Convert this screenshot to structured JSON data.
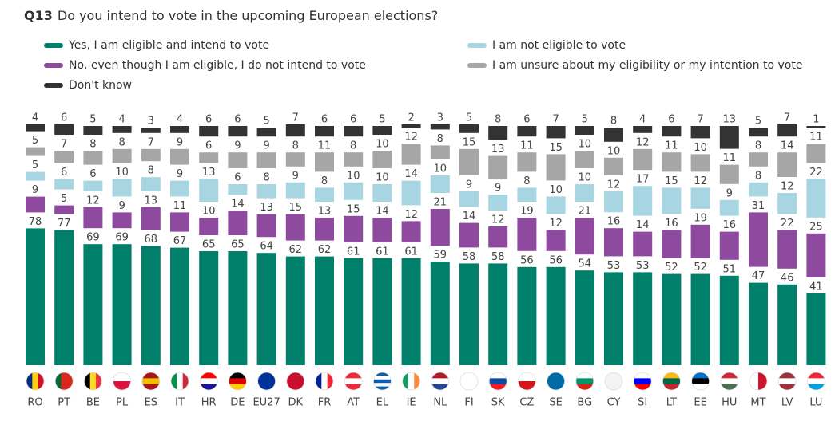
{
  "chart_data": {
    "type": "stacked-bar",
    "title_code": "Q13",
    "title": "Do you intend to vote in the upcoming European elections?",
    "categories": [
      "RO",
      "PT",
      "BE",
      "PL",
      "ES",
      "IT",
      "HR",
      "DE",
      "EU27",
      "DK",
      "FR",
      "AT",
      "EL",
      "IE",
      "NL",
      "FI",
      "SK",
      "CZ",
      "SE",
      "BG",
      "CY",
      "SI",
      "LT",
      "EE",
      "HU",
      "MT",
      "LV",
      "LU"
    ],
    "series": [
      {
        "name": "Yes, I am eligible and intend to vote",
        "color": "#00806a",
        "values": [
          78,
          77,
          69,
          69,
          68,
          67,
          65,
          65,
          64,
          62,
          62,
          61,
          61,
          61,
          59,
          58,
          58,
          56,
          56,
          54,
          53,
          53,
          52,
          52,
          51,
          47,
          46,
          41
        ]
      },
      {
        "name": "No, even though I am eligible, I do not intend to vote",
        "color": "#8e4a9e",
        "values": [
          9,
          5,
          12,
          9,
          13,
          11,
          10,
          14,
          13,
          15,
          13,
          15,
          14,
          12,
          21,
          14,
          12,
          19,
          12,
          21,
          16,
          14,
          16,
          19,
          16,
          31,
          22,
          25
        ]
      },
      {
        "name": "I am not eligible to vote",
        "color": "#a8d5e2",
        "values": [
          5,
          6,
          6,
          10,
          8,
          9,
          13,
          6,
          8,
          9,
          8,
          10,
          10,
          14,
          10,
          9,
          9,
          8,
          10,
          10,
          12,
          17,
          15,
          12,
          9,
          8,
          12,
          22
        ]
      },
      {
        "name": "I am unsure about my eligibility or my intention to vote",
        "color": "#a6a6a6",
        "values": [
          5,
          7,
          8,
          8,
          7,
          9,
          6,
          9,
          9,
          8,
          11,
          8,
          10,
          12,
          8,
          15,
          13,
          11,
          15,
          10,
          10,
          12,
          11,
          10,
          11,
          8,
          14,
          11
        ]
      },
      {
        "name": "Don't know",
        "color": "#333333",
        "values": [
          4,
          6,
          5,
          4,
          3,
          4,
          6,
          6,
          5,
          7,
          6,
          6,
          5,
          2,
          3,
          5,
          8,
          6,
          7,
          5,
          8,
          4,
          6,
          7,
          13,
          5,
          7,
          1
        ]
      }
    ]
  }
}
